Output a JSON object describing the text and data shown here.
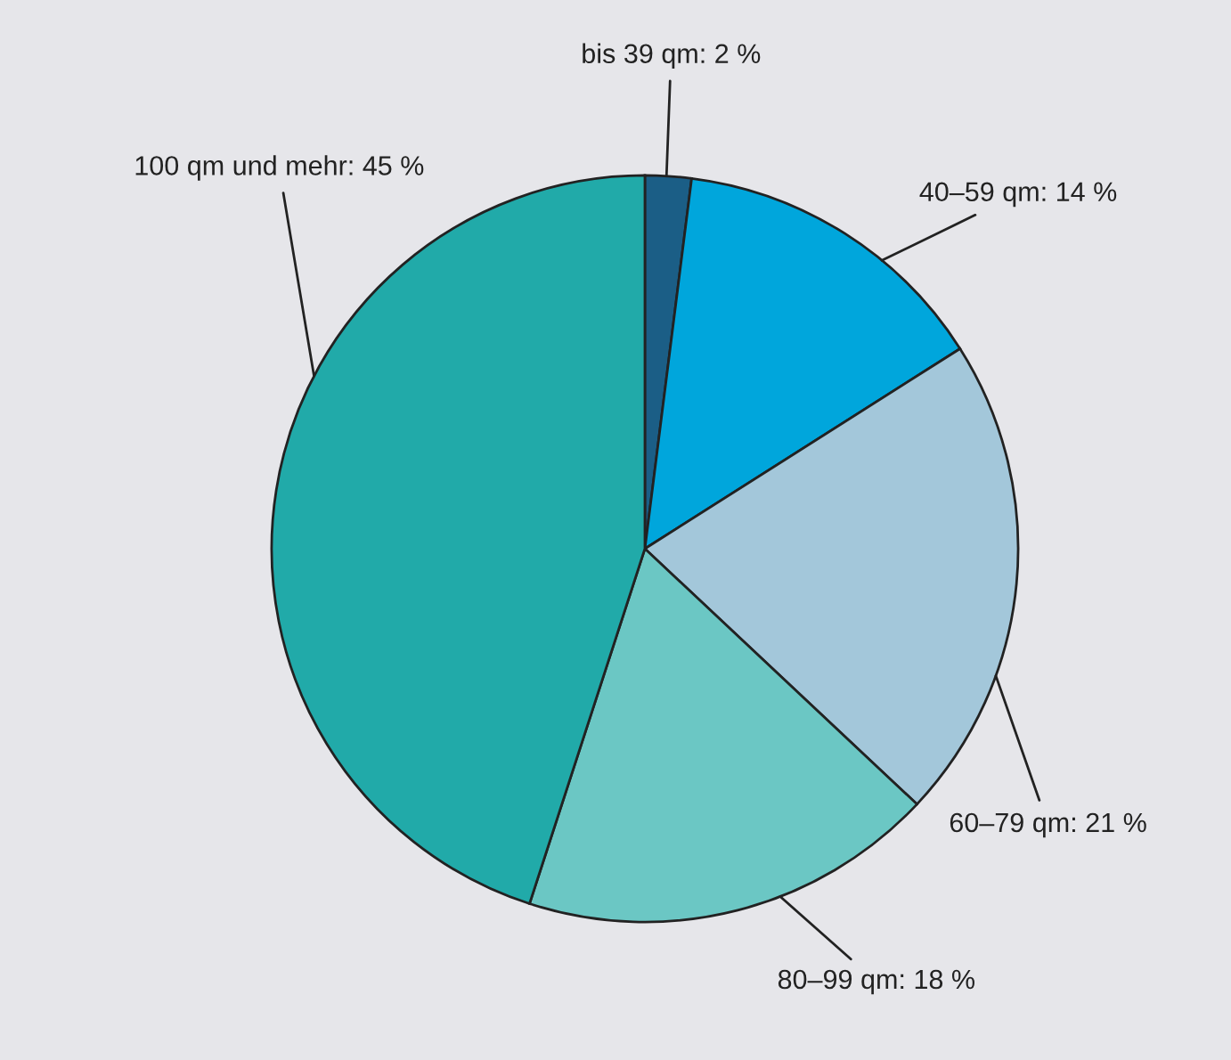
{
  "chart_data": {
    "type": "pie",
    "categories": [
      "bis 39 qm",
      "40–59 qm",
      "60–79 qm",
      "80–99 qm",
      "100 qm und mehr"
    ],
    "values": [
      2,
      14,
      21,
      18,
      45
    ],
    "colors": [
      "#1b5e86",
      "#00a6dc",
      "#a3c7da",
      "#6bc7c4",
      "#21aaa9"
    ],
    "value_labels": [
      "2 %",
      "14 %",
      "21 %",
      "18 %",
      "45 %"
    ]
  }
}
